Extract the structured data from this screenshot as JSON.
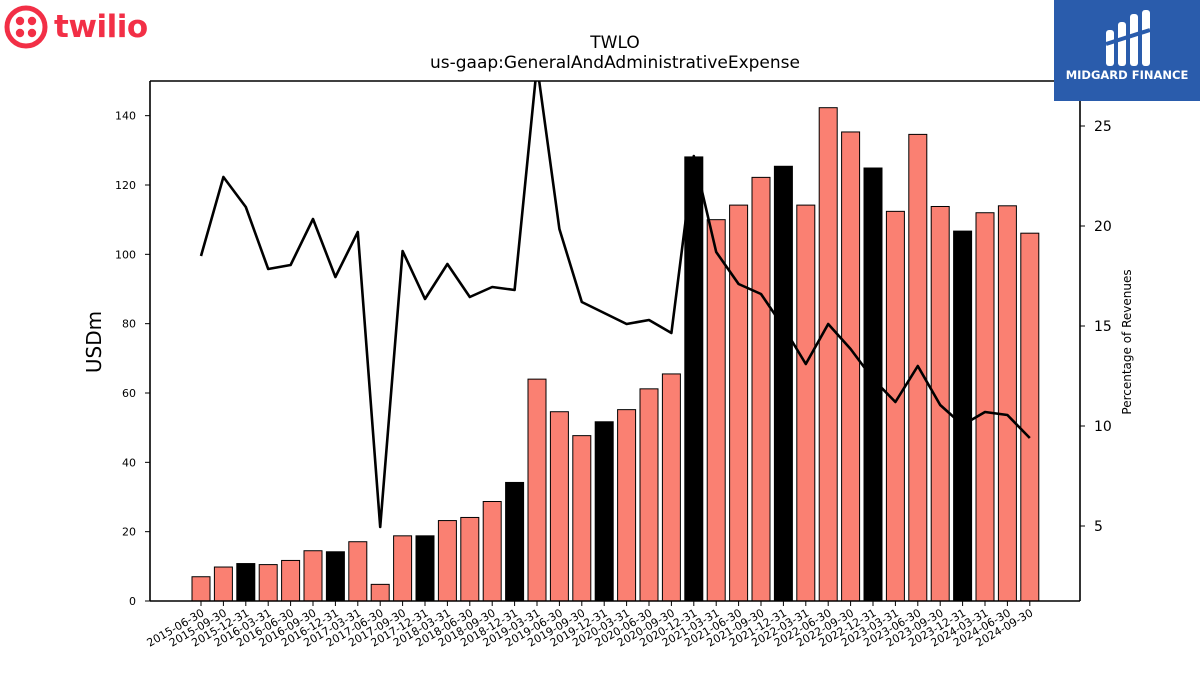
{
  "logos": {
    "left_text": "twilio",
    "left_color": "#f22f46",
    "right_text": "MIDGARD FINANCE",
    "right_bg": "#2a5cac"
  },
  "chart_data": {
    "type": "bar",
    "title": "TWLO",
    "subtitle": "us-gaap:GeneralAndAdministrativeExpense",
    "ylabel": "USDm",
    "y2label": "Percentage of Revenues",
    "ylim": [
      0,
      150
    ],
    "y2lim": [
      1.25,
      27.25
    ],
    "yticks": [
      0,
      20,
      40,
      60,
      80,
      100,
      120,
      140
    ],
    "y2ticks": [
      5,
      10,
      15,
      20,
      25
    ],
    "colors": {
      "bar": "#fa8072",
      "bar_q4": "#000000",
      "line": "#000000"
    },
    "categories": [
      "2015-06-30",
      "2015-09-30",
      "2015-12-31",
      "2016-03-31",
      "2016-06-30",
      "2016-09-30",
      "2016-12-31",
      "2017-03-31",
      "2017-06-30",
      "2017-09-30",
      "2017-12-31",
      "2018-03-31",
      "2018-06-30",
      "2018-09-30",
      "2018-12-31",
      "2019-03-31",
      "2019-06-30",
      "2019-09-30",
      "2019-12-31",
      "2020-03-31",
      "2020-06-30",
      "2020-09-30",
      "2020-12-31",
      "2021-03-31",
      "2021-06-30",
      "2021-09-30",
      "2021-12-31",
      "2022-03-31",
      "2022-06-30",
      "2022-09-30",
      "2022-12-31",
      "2023-03-31",
      "2023-06-30",
      "2023-09-30",
      "2023-12-31",
      "2024-03-31",
      "2024-06-30",
      "2024-09-30"
    ],
    "series": [
      {
        "values": [
          7.0,
          9.8,
          10.8,
          10.5,
          11.7,
          14.5,
          14.2,
          17.1,
          4.8,
          18.8,
          18.8,
          23.2,
          24.1,
          28.7,
          34.2,
          64.0,
          54.6,
          47.7,
          51.7,
          55.2,
          61.2,
          65.5,
          128.1,
          110.0,
          114.2,
          122.2,
          125.4,
          114.2,
          142.3,
          135.3,
          124.9,
          112.4,
          134.6,
          113.8,
          106.7,
          112.0,
          114.0,
          106.1
        ]
      },
      {
        "axis": "right",
        "values": [
          18.5,
          22.45,
          20.95,
          17.85,
          18.05,
          20.35,
          17.45,
          19.7,
          4.95,
          18.75,
          16.35,
          18.1,
          16.45,
          16.95,
          16.8,
          28.05,
          19.85,
          16.2,
          15.65,
          15.1,
          15.3,
          14.65,
          23.5,
          18.7,
          17.1,
          16.6,
          14.95,
          13.1,
          15.1,
          13.85,
          12.35,
          11.2,
          13.0,
          11.05,
          10.05,
          10.7,
          10.55,
          9.4
        ]
      }
    ]
  }
}
